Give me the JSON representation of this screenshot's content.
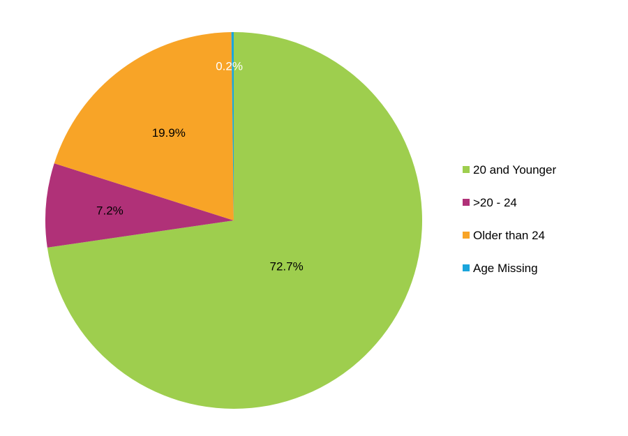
{
  "chart_data": {
    "type": "pie",
    "title": "",
    "slices": [
      {
        "label": "20 and Younger",
        "value": 72.7,
        "display": "72.7%",
        "color": "#9ECE4E",
        "label_color": "#000000"
      },
      {
        "label": ">20 - 24",
        "value": 7.2,
        "display": "7.2%",
        "color": "#B03178",
        "label_color": "#000000"
      },
      {
        "label": "Older than 24",
        "value": 19.9,
        "display": "19.9%",
        "color": "#F8A427",
        "label_color": "#000000"
      },
      {
        "label": "Age Missing",
        "value": 0.2,
        "display": "0.2%",
        "color": "#1BA5DC",
        "label_color": "#ffffff"
      }
    ],
    "start_angle_deg": 0,
    "direction": "clockwise",
    "legend_position": "right"
  }
}
